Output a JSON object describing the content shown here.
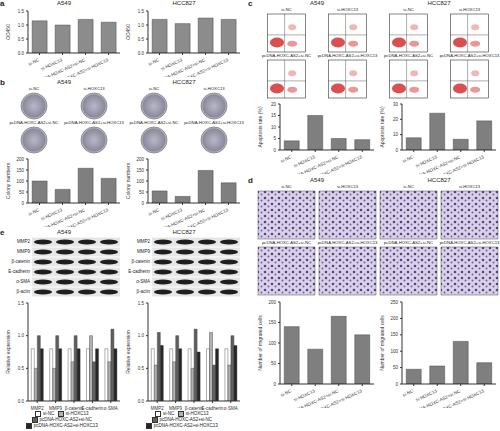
{
  "chart_data": [
    {
      "type": "bar",
      "title": "A549",
      "y_label": "OD450",
      "categories": [
        "si-NC",
        "si-HOXC13",
        "pcDNA-HOXC-AS2+si-NC",
        "pcDNA-HOXC-AS2+si-HOXC13"
      ],
      "values": [
        1.15,
        1.0,
        1.2,
        1.1
      ],
      "color": "#8c8c8c",
      "ylim": [
        0,
        1.5
      ],
      "yticks": [
        {
          "value": 0,
          "label": "0.0"
        },
        0.5,
        {
          "value": 1,
          "label": "1.0"
        },
        1.5
      ]
    },
    {
      "type": "bar",
      "title": "HCC827",
      "y_label": "OD450",
      "categories": [
        "si-NC",
        "si-HOXC13",
        "pcDNA-HOXC-AS2+si-NC",
        "pcDNA-HOXC-AS2+si-HOXC13"
      ],
      "values": [
        1.2,
        1.05,
        1.25,
        1.2
      ],
      "color": "#8c8c8c",
      "ylim": [
        0,
        1.5
      ],
      "yticks": [
        {
          "value": 0,
          "label": "0.0"
        },
        0.5,
        {
          "value": 1,
          "label": "1.0"
        },
        1.5
      ]
    },
    {
      "type": "bar",
      "y_label": "Colony numbers",
      "categories": [
        "si-NC",
        "si-HOXC13",
        "pcDNA-HOXC-AS2+si-NC",
        "pcDNA-HOXC-AS2+si-HOXC13"
      ],
      "values": [
        100,
        62,
        158,
        112
      ],
      "color": "#7f7f7f",
      "ylim": [
        0,
        200
      ],
      "yticks": [
        0,
        50,
        100,
        150,
        200
      ]
    },
    {
      "type": "bar",
      "y_label": "Colony numbers",
      "categories": [
        "si-NC",
        "si-HOXC13",
        "pcDNA-HOXC-AS2+si-NC",
        "pcDNA-HOXC-AS2+si-HOXC13"
      ],
      "values": [
        55,
        30,
        148,
        92
      ],
      "color": "#7f7f7f",
      "ylim": [
        0,
        200
      ],
      "yticks": [
        0,
        50,
        100,
        150,
        200
      ]
    },
    {
      "type": "bar",
      "y_label": "Apoptosis rate (%)",
      "categories": [
        "si-NC",
        "si-HOXC13",
        "pcDNA-HOXC-AS2+si-NC",
        "pcDNA-HOXC-AS2+si-HOXC13"
      ],
      "values": [
        4,
        15,
        5,
        4.5
      ],
      "color": "#7f7f7f",
      "ylim": [
        0,
        20
      ],
      "yticks": [
        0,
        5,
        10,
        15,
        20
      ]
    },
    {
      "type": "bar",
      "y_label": "Apoptosis rate (%)",
      "categories": [
        "si-NC",
        "si-HOXC13",
        "pcDNA-HOXC-AS2+si-NC",
        "pcDNA-HOXC-AS2+si-HOXC13"
      ],
      "values": [
        8,
        24,
        7,
        19
      ],
      "color": "#7f7f7f",
      "ylim": [
        0,
        30
      ],
      "yticks": [
        0,
        10,
        20,
        30
      ]
    },
    {
      "type": "bar",
      "y_label": "Number of migrated cells",
      "categories": [
        "si-NC",
        "si-HOXC13",
        "pcDNA-HOXC-AS2+si-NC",
        "pcDNA-HOXC-AS2+si-HOXC13"
      ],
      "values": [
        140,
        85,
        165,
        120
      ],
      "color": "#7f7f7f",
      "ylim": [
        0,
        200
      ],
      "yticks": [
        0,
        50,
        100,
        150,
        200
      ]
    },
    {
      "type": "bar",
      "y_label": "Number of migrated cells",
      "categories": [
        "si-NC",
        "si-HOXC13",
        "pcDNA-HOXC-AS2+si-NC",
        "pcDNA-HOXC-AS2+si-HOXC13"
      ],
      "values": [
        45,
        55,
        130,
        65
      ],
      "color": "#7f7f7f",
      "ylim": [
        0,
        250
      ],
      "yticks": [
        0,
        50,
        100,
        150,
        200,
        250
      ]
    },
    {
      "type": "bar",
      "y_label": "Relative expression",
      "categories": [
        "MMP2",
        "MMP9",
        "β-catenin",
        "E-cadherin",
        "α-SMA"
      ],
      "series": [
        {
          "name": "si-NC",
          "color": "#ffffff",
          "values": [
            0.8,
            0.8,
            0.8,
            0.8,
            0.8
          ]
        },
        {
          "name": "si-HOXC13",
          "color": "#b0b0b0",
          "values": [
            0.5,
            0.5,
            0.6,
            1.0,
            0.6
          ]
        },
        {
          "name": "pcDNA-HOXC-AS2+si-NC",
          "color": "#606060",
          "values": [
            1.0,
            1.0,
            1.0,
            0.6,
            1.1
          ]
        },
        {
          "name": "pcDNA-HOXC-AS2+si-HOXC13",
          "color": "#262626",
          "values": [
            0.8,
            0.8,
            0.8,
            0.8,
            0.8
          ]
        }
      ],
      "ylim": [
        0,
        1.5
      ],
      "yticks": [
        {
          "value": 0,
          "label": "0.0"
        },
        0.5,
        {
          "value": 1,
          "label": "1.0"
        },
        1.5
      ],
      "legend": "bottom"
    },
    {
      "type": "bar",
      "y_label": "Relative expression",
      "categories": [
        "MMP2",
        "MMP9",
        "β-catenin",
        "E-cadherin",
        "α-SMA"
      ],
      "series": [
        {
          "name": "si-NC",
          "color": "#ffffff",
          "values": [
            0.8,
            0.8,
            0.8,
            0.8,
            0.8
          ]
        },
        {
          "name": "si-HOXC13",
          "color": "#b0b0b0",
          "values": [
            0.55,
            0.6,
            0.5,
            1.05,
            0.55
          ]
        },
        {
          "name": "pcDNA-HOXC-AS2+si-NC",
          "color": "#606060",
          "values": [
            1.05,
            1.0,
            1.1,
            0.55,
            1.0
          ]
        },
        {
          "name": "pcDNA-HOXC-AS2+si-HOXC13",
          "color": "#262626",
          "values": [
            0.85,
            0.8,
            0.75,
            0.8,
            0.85
          ]
        }
      ],
      "ylim": [
        0,
        1.5
      ],
      "yticks": [
        {
          "value": 0,
          "label": "0.0"
        },
        0.5,
        {
          "value": 1,
          "label": "1.0"
        },
        1.5
      ],
      "legend": "bottom"
    }
  ],
  "figure": {
    "letters": [
      "a",
      "b",
      "c",
      "d",
      "e"
    ],
    "cell_lines": [
      "A549",
      "HCC827"
    ],
    "groups": [
      "si-NC",
      "si-HOXC13",
      "pcDNA-HOXC-AS2+si-NC",
      "pcDNA-HOXC-AS2+si-HOXC13"
    ],
    "blot_proteins": [
      "MMP2",
      "MMP9",
      "β-catenin",
      "E-cadherin",
      "α-SMA",
      "β-actin"
    ]
  }
}
